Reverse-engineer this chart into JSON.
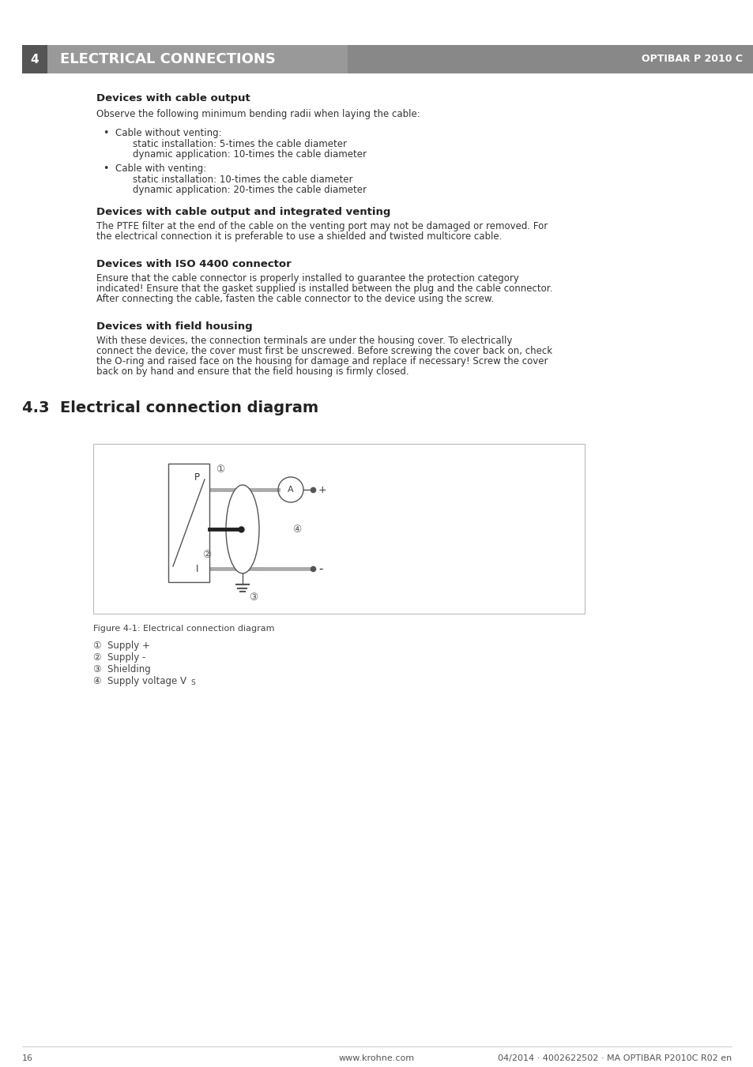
{
  "page_bg": "#ffffff",
  "header_bg": "#999999",
  "header_number": "4",
  "header_title": "ELECTRICAL CONNECTIONS",
  "header_right": "OPTIBAR P 2010 C",
  "header_number_bg": "#555555",
  "section_devices_cable_output_title": "Devices with cable output",
  "section_devices_cable_output_text1": "Observe the following minimum bending radii when laying the cable:",
  "bullet1_title": "Cable without venting:",
  "bullet1_line1": "static installation: 5-times the cable diameter",
  "bullet1_line2": "dynamic application: 10-times the cable diameter",
  "bullet2_title": "Cable with venting:",
  "bullet2_line1": "static installation: 10-times the cable diameter",
  "bullet2_line2": "dynamic application: 20-times the cable diameter",
  "section_venting_title": "Devices with cable output and integrated venting",
  "section_venting_text": "The PTFE filter at the end of the cable on the venting port may not be damaged or removed. For\nthe electrical connection it is preferable to use a shielded and twisted multicore cable.",
  "section_iso_title": "Devices with ISO 4400 connector",
  "section_iso_text": "Ensure that the cable connector is properly installed to guarantee the protection category\nindicated! Ensure that the gasket supplied is installed between the plug and the cable connector.\nAfter connecting the cable, fasten the cable connector to the device using the screw.",
  "section_field_title": "Devices with field housing",
  "section_field_text": "With these devices, the connection terminals are under the housing cover. To electrically\nconnect the device, the cover must first be unscrewed. Before screwing the cover back on, check\nthe O-ring and raised face on the housing for damage and replace if necessary! Screw the cover\nback on by hand and ensure that the field housing is firmly closed.",
  "section43_title": "4.3  Electrical connection diagram",
  "figure_caption": "Figure 4-1: Electrical connection diagram",
  "legend1": "①  Supply +",
  "legend2": "②  Supply -",
  "legend3": "③  Shielding",
  "legend4_pre": "④  Supply voltage V",
  "legend4_sub": "S",
  "footer_page": "16",
  "footer_center": "www.krohne.com",
  "footer_right": "04/2014 · 4002622502 · MA OPTIBAR P2010C R02 en"
}
